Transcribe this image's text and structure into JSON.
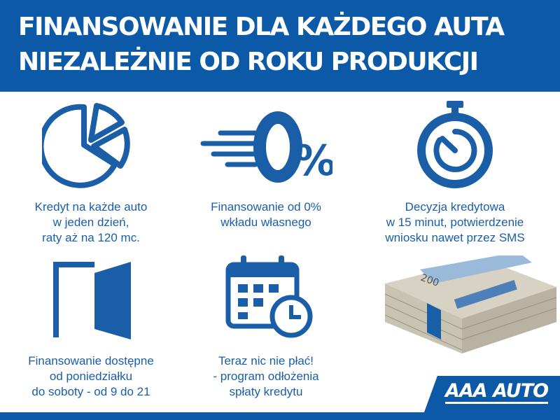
{
  "header": {
    "line1": "FINANSOWANIE DLA KAŻDEGO AUTA",
    "line2": "NIEZALEŻNIE OD ROKU PRODUKCJI"
  },
  "features": [
    {
      "icon": "pie-chart-icon",
      "lines": [
        "Kredyt na każde auto",
        "w jeden dzień,",
        "raty aż na 120 mc."
      ]
    },
    {
      "icon": "zero-percent-icon",
      "icon_text": "0%",
      "lines": [
        "Finansowanie od 0%",
        "wkładu własnego"
      ]
    },
    {
      "icon": "stopwatch-icon",
      "lines": [
        "Decyzja kredytowa",
        "w 15 minut, potwierdzenie",
        "wniosku nawet przez SMS"
      ]
    },
    {
      "icon": "door-icon",
      "lines": [
        "Finansowanie dostępne",
        "od poniedziałku",
        "do soboty - od 9 do 21"
      ]
    },
    {
      "icon": "calendar-clock-icon",
      "lines": [
        "Teraz nic nie płać!",
        "- program odłożenia",
        "spłaty kredytu"
      ]
    }
  ],
  "money_note": "200",
  "logo": "AAA AUTO",
  "colors": {
    "brand_blue": "#0c5aa7",
    "text_blue": "#1b5ea8"
  }
}
